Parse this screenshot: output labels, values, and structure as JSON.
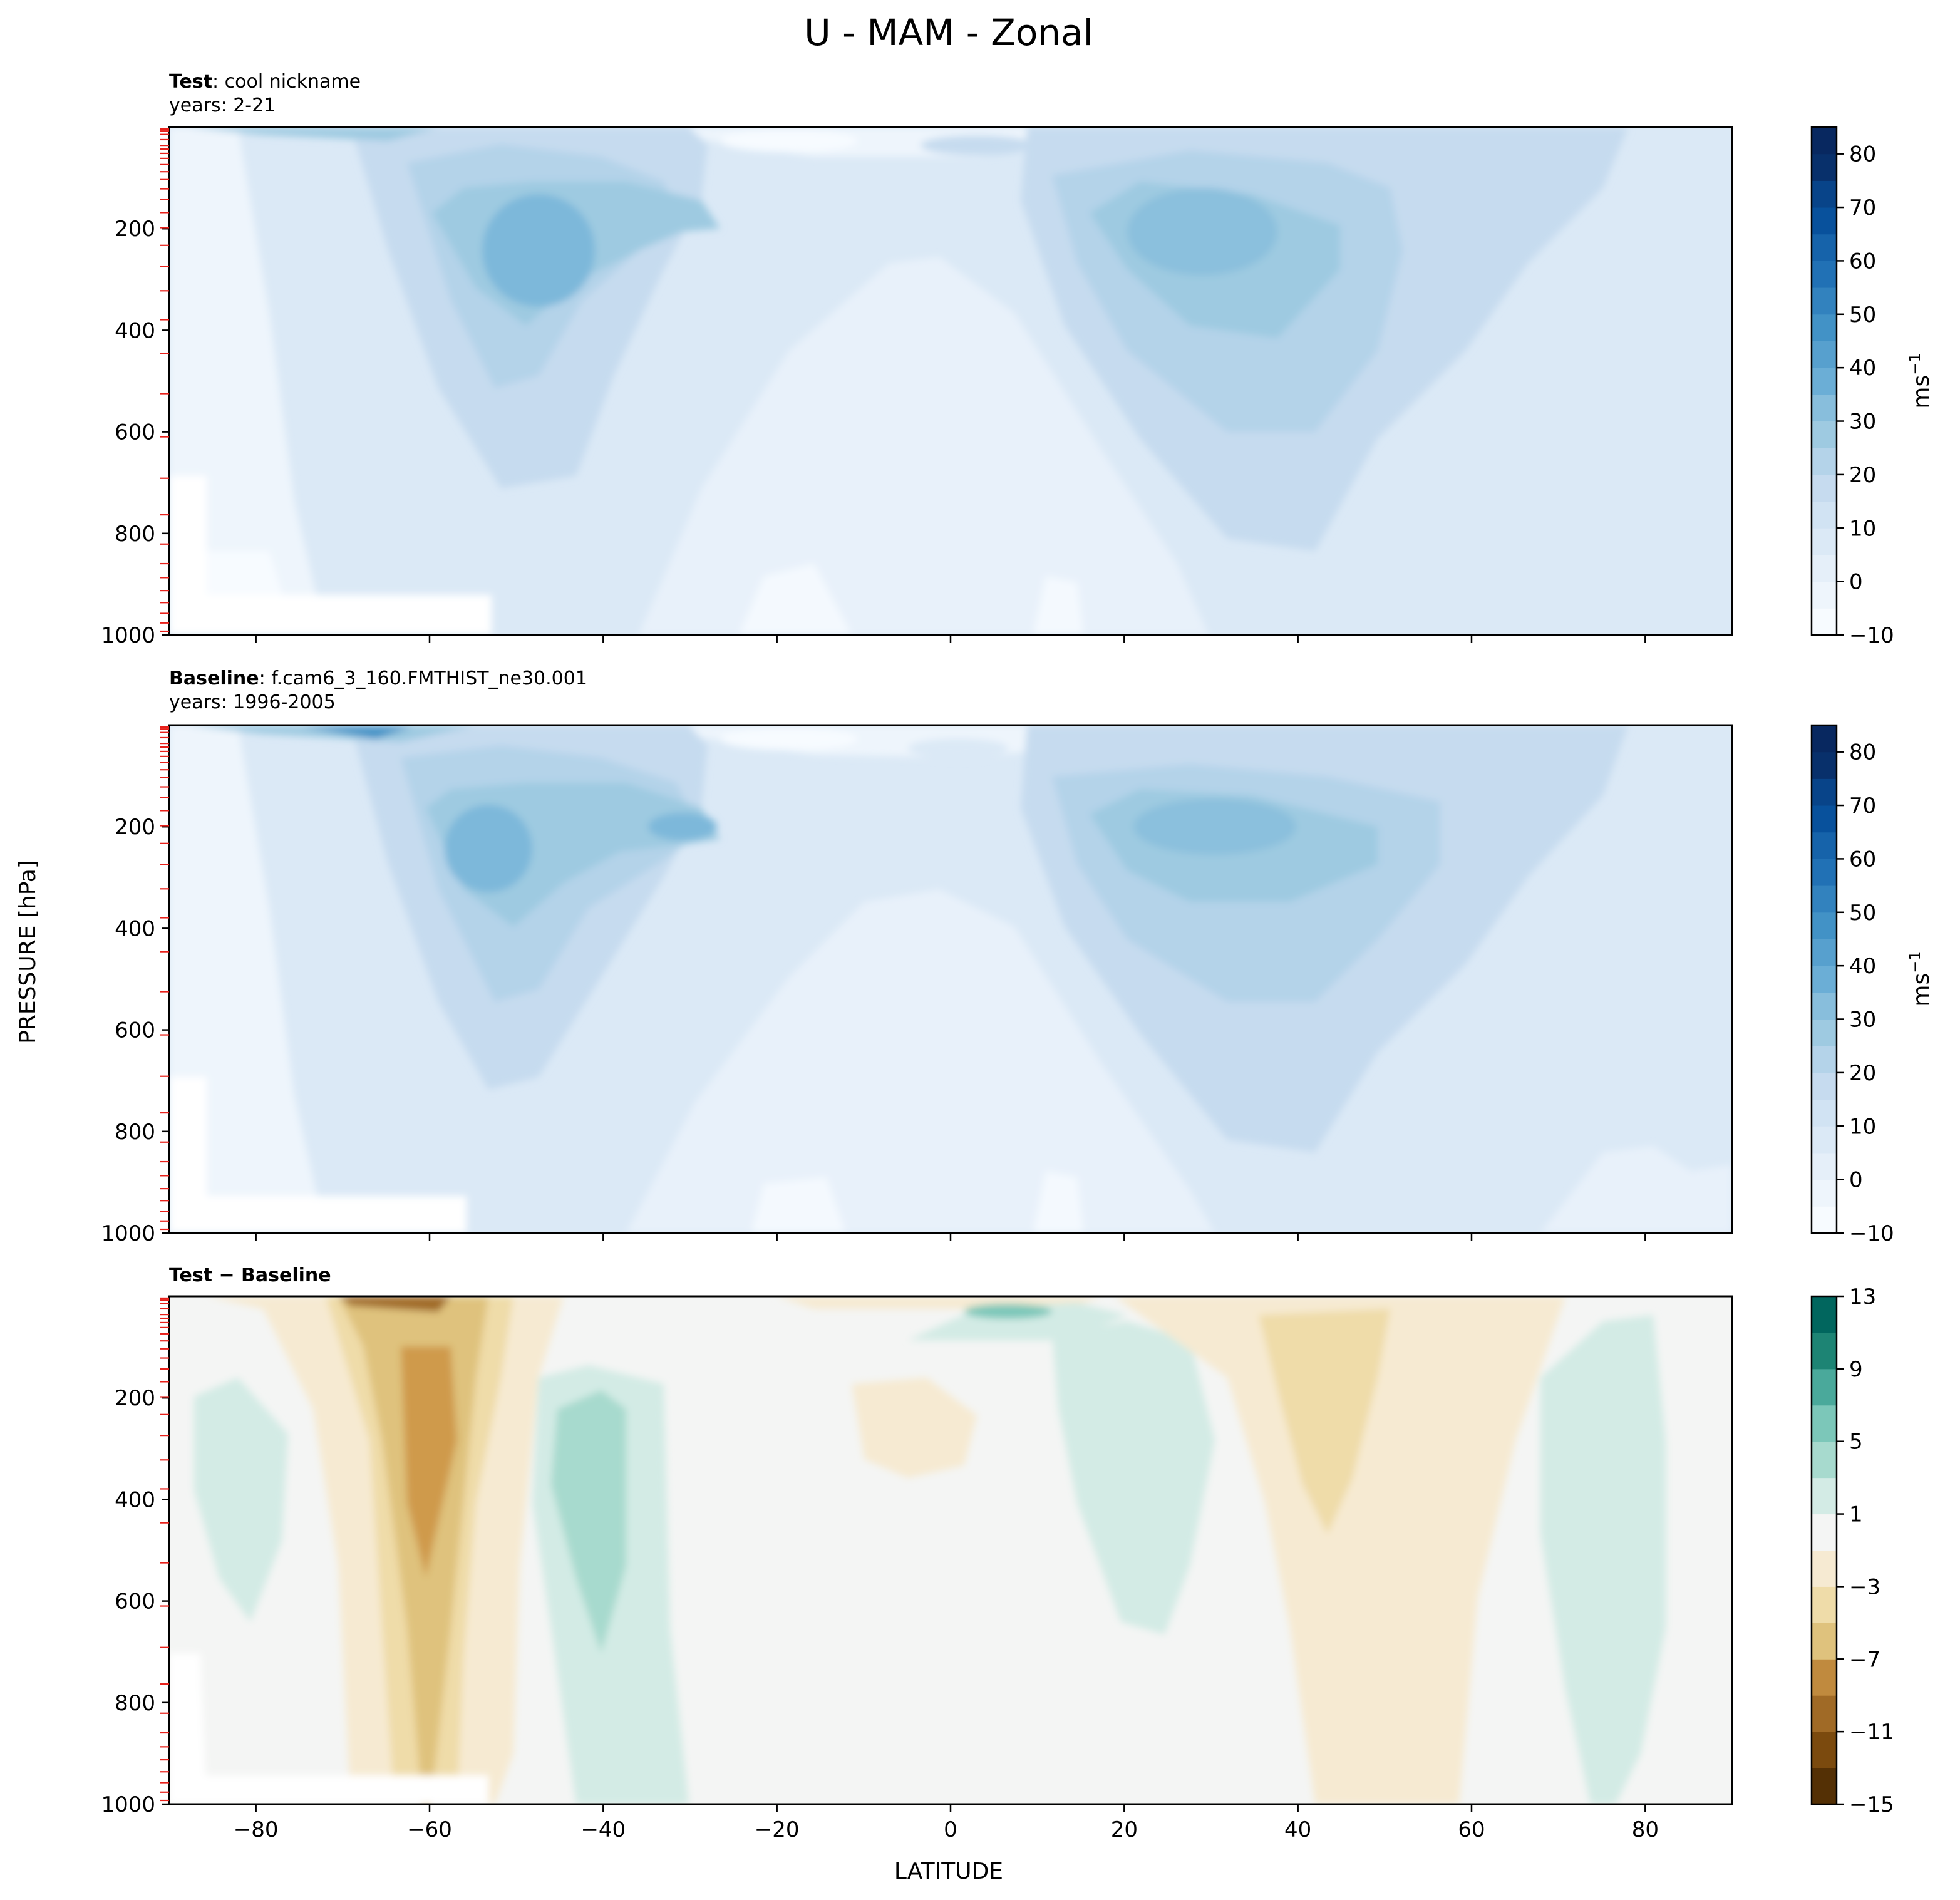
{
  "figure": {
    "suptitle": "U - MAM - Zonal",
    "ylabel": "PRESSURE [hPa]",
    "xlabel": "LATITUDE"
  },
  "chart_data": [
    {
      "type": "contour",
      "panel": "test",
      "title_bold": "Test",
      "title_rest": ": cool nickname",
      "subtitle": "years: 2-21",
      "xlim": [
        -90,
        90
      ],
      "ylim": [
        1000,
        0
      ],
      "x_ticks": [
        -80,
        -60,
        -40,
        -20,
        0,
        20,
        40,
        60,
        80
      ],
      "y_ticks": [
        200,
        400,
        600,
        800,
        1000
      ],
      "colorbar": {
        "range": [
          -10,
          85
        ],
        "ticks": [
          -10,
          0,
          10,
          20,
          30,
          40,
          50,
          60,
          70,
          80
        ],
        "levels": [
          -10,
          -5,
          0,
          5,
          10,
          15,
          20,
          25,
          30,
          35,
          40,
          45,
          50,
          55,
          60,
          65,
          70,
          75,
          80,
          85
        ],
        "label": "ms",
        "label_sup": "−1",
        "colormap": "Blues"
      },
      "jets": [
        {
          "lat": -47,
          "p": 230,
          "max": 38
        },
        {
          "lat": 28,
          "p": 200,
          "max": 36
        }
      ]
    },
    {
      "type": "contour",
      "panel": "baseline",
      "title_bold": "Baseline",
      "title_rest": ": f.cam6_3_160.FMTHIST_ne30.001",
      "subtitle": "years: 1996-2005",
      "xlim": [
        -90,
        90
      ],
      "ylim": [
        1000,
        0
      ],
      "x_ticks": [
        -80,
        -60,
        -40,
        -20,
        0,
        20,
        40,
        60,
        80
      ],
      "y_ticks": [
        200,
        400,
        600,
        800,
        1000
      ],
      "colorbar": {
        "range": [
          -10,
          85
        ],
        "ticks": [
          -10,
          0,
          10,
          20,
          30,
          40,
          50,
          60,
          70,
          80
        ],
        "levels": [
          -10,
          -5,
          0,
          5,
          10,
          15,
          20,
          25,
          30,
          35,
          40,
          45,
          50,
          55,
          60,
          65,
          70,
          75,
          80,
          85
        ],
        "label": "ms",
        "label_sup": "−1",
        "colormap": "Blues"
      },
      "jets": [
        {
          "lat": -51,
          "p": 230,
          "max": 37
        },
        {
          "lat": 30,
          "p": 200,
          "max": 33
        }
      ]
    },
    {
      "type": "contour",
      "panel": "difference",
      "title_bold": "Test − Baseline",
      "title_rest": "",
      "subtitle": "",
      "xlim": [
        -90,
        90
      ],
      "ylim": [
        1000,
        0
      ],
      "x_ticks": [
        -80,
        -60,
        -40,
        -20,
        0,
        20,
        40,
        60,
        80
      ],
      "y_ticks": [
        200,
        400,
        600,
        800,
        1000
      ],
      "colorbar": {
        "range": [
          -15,
          13
        ],
        "ticks": [
          -15,
          -11,
          -7,
          -3,
          1,
          5,
          9,
          13
        ],
        "levels": [
          -15,
          -13,
          -11,
          -9,
          -7,
          -5,
          -3,
          -1,
          1,
          3,
          5,
          7,
          9,
          11,
          13
        ],
        "label": "",
        "colormap": "BrBG"
      }
    }
  ]
}
